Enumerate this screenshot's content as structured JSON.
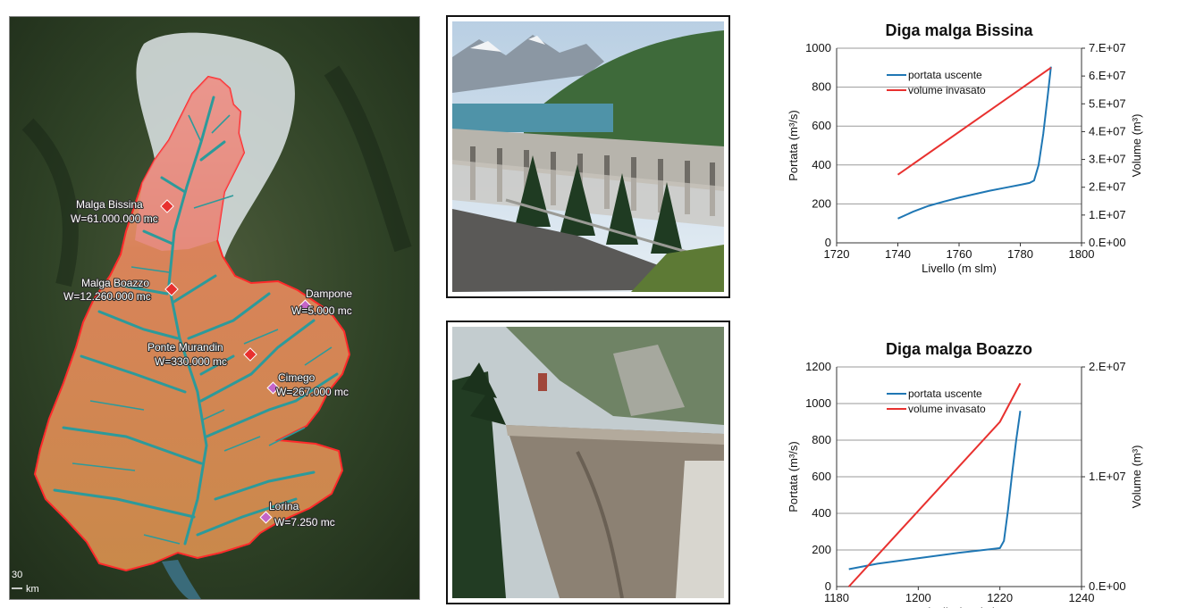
{
  "map": {
    "markers": [
      {
        "name": "Malga Bissina",
        "value": "W=61.000.000 mc",
        "color": "#e8312f"
      },
      {
        "name": "Malga Boazzo",
        "value": "W=12.260.000 mc",
        "color": "#e8312f"
      },
      {
        "name": "Ponte Murandin",
        "value": "W=330.000 mc",
        "color": "#e8312f"
      },
      {
        "name": "Dampone",
        "value": "W=5.000 mc",
        "color": "#c465c8"
      },
      {
        "name": "Cimego",
        "value": "W=267.000 mc",
        "color": "#c465c8"
      },
      {
        "name": "Lorina",
        "value": "W=7.250 mc",
        "color": "#c465c8"
      }
    ],
    "scale_number": "30",
    "scale_unit": "km"
  },
  "chart_data": [
    {
      "type": "line",
      "title": "Diga malga Bissina",
      "xlabel": "Livello (m slm)",
      "ylabel": "Portata (m³/s)",
      "y2label": "Volume (m³)",
      "xlim": [
        1720,
        1800
      ],
      "ylim": [
        0,
        1000
      ],
      "y2lim": [
        0,
        70000000
      ],
      "xticks": [
        "1720",
        "1740",
        "1760",
        "1780",
        "1800"
      ],
      "yticks": [
        "0",
        "200",
        "400",
        "600",
        "800",
        "1000"
      ],
      "y2ticks": [
        "0.E+00",
        "1.E+07",
        "2.E+07",
        "3.E+07",
        "4.E+07",
        "5.E+07",
        "6.E+07",
        "7.E+07"
      ],
      "grid": true,
      "legend": "top-left",
      "series": [
        {
          "name": "portata uscente",
          "color": "#1f77b4",
          "axis": "left",
          "x": [
            1740,
            1745,
            1750,
            1755,
            1760,
            1765,
            1770,
            1775,
            1780,
            1783,
            1784.5,
            1786,
            1787.5,
            1789,
            1790
          ],
          "y": [
            125,
            160,
            190,
            212,
            232,
            250,
            268,
            283,
            298,
            308,
            320,
            400,
            560,
            760,
            905
          ]
        },
        {
          "name": "volume invasato",
          "color": "#e8312f",
          "axis": "right",
          "x": [
            1740,
            1790
          ],
          "y": [
            24500000,
            63000000
          ]
        }
      ]
    },
    {
      "type": "line",
      "title": "Diga malga Boazzo",
      "xlabel": "Livello (m slm)",
      "ylabel": "Portata (m³/s)",
      "y2label": "Volume (m³)",
      "xlim": [
        1180,
        1240
      ],
      "ylim": [
        0,
        1200
      ],
      "y2lim": [
        0,
        20000000
      ],
      "xticks": [
        "1180",
        "1200",
        "1220",
        "1240"
      ],
      "yticks": [
        "0",
        "200",
        "400",
        "600",
        "800",
        "1000",
        "1200"
      ],
      "y2ticks": [
        "0.E+00",
        "1.E+07",
        "2.E+07"
      ],
      "grid": true,
      "legend": "top-left",
      "series": [
        {
          "name": "portata uscente",
          "color": "#1f77b4",
          "axis": "left",
          "x": [
            1183,
            1190,
            1200,
            1210,
            1218,
            1220,
            1221,
            1222,
            1223,
            1224,
            1225
          ],
          "y": [
            95,
            125,
            155,
            185,
            205,
            210,
            250,
            420,
            620,
            800,
            960
          ]
        },
        {
          "name": "volume invasato",
          "color": "#e8312f",
          "axis": "right",
          "x": [
            1183,
            1220,
            1225
          ],
          "y": [
            0,
            15000000,
            18500000
          ]
        }
      ]
    }
  ]
}
